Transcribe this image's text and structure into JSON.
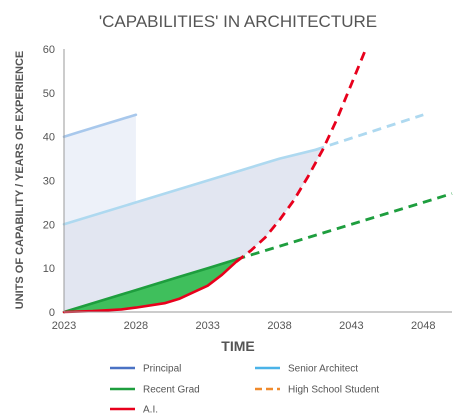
{
  "chart_data": {
    "type": "line",
    "title": "'CAPABILITIES' IN ARCHITECTURE",
    "xlabel": "TIME",
    "ylabel": "UNITS OF CAPABILITY / YEARS OF EXPERIENCE",
    "xlim": [
      2023,
      2050
    ],
    "ylim": [
      0,
      60
    ],
    "xticks": [
      2023,
      2028,
      2033,
      2038,
      2043,
      2048
    ],
    "yticks": [
      0,
      10,
      20,
      30,
      40,
      50,
      60
    ],
    "grid": false,
    "legend_position": "bottom",
    "series": [
      {
        "name": "Principal",
        "color": "#a8c8ec",
        "style": "solid",
        "points": [
          [
            2023,
            40
          ],
          [
            2024,
            41
          ],
          [
            2025,
            42
          ],
          [
            2026,
            43
          ],
          [
            2027,
            44
          ],
          [
            2028,
            45
          ]
        ]
      },
      {
        "name": "Senior Architect",
        "color": "#aed9f0",
        "style": "solid-then-dashed",
        "points": [
          [
            2023,
            20
          ],
          [
            2028,
            25
          ],
          [
            2033,
            30
          ],
          [
            2038,
            35
          ],
          [
            2040.5,
            37
          ]
        ],
        "projection": [
          [
            2040.5,
            37
          ],
          [
            2048,
            45
          ]
        ]
      },
      {
        "name": "Recent Grad",
        "color": "#1e9e3e",
        "style": "solid-then-dashed",
        "points": [
          [
            2023,
            0
          ],
          [
            2025,
            2
          ],
          [
            2028,
            5
          ],
          [
            2031,
            8
          ],
          [
            2033,
            10
          ],
          [
            2035,
            12
          ]
        ],
        "projection": [
          [
            2035,
            12
          ],
          [
            2050,
            27
          ]
        ]
      },
      {
        "name": "High School Student",
        "color": "#f4a460",
        "style": "dashed",
        "points": []
      },
      {
        "name": "A.I.",
        "color": "#e8001c",
        "style": "solid-then-dashed",
        "points": [
          [
            2023,
            0
          ],
          [
            2025,
            0.2
          ],
          [
            2027,
            0.6
          ],
          [
            2028,
            1
          ],
          [
            2030,
            2
          ],
          [
            2031,
            3
          ],
          [
            2032,
            4.5
          ],
          [
            2033,
            6
          ],
          [
            2034,
            8.5
          ],
          [
            2035,
            11.5
          ]
        ],
        "projection": [
          [
            2035,
            11.5
          ],
          [
            2036,
            14
          ],
          [
            2037,
            17
          ],
          [
            2038,
            21
          ],
          [
            2039,
            25.5
          ],
          [
            2040,
            31
          ],
          [
            2041,
            37
          ],
          [
            2042,
            44
          ],
          [
            2043,
            52
          ],
          [
            2044,
            60
          ]
        ]
      }
    ],
    "legend": [
      {
        "label": "Principal",
        "color": "#4a72c4",
        "style": "solid"
      },
      {
        "label": "Senior Architect",
        "color": "#4bb3e8",
        "style": "solid"
      },
      {
        "label": "Recent Grad",
        "color": "#1e9e3e",
        "style": "solid"
      },
      {
        "label": "High School Student",
        "color": "#f08a2c",
        "style": "dashed"
      },
      {
        "label": "A.I.",
        "color": "#e8001c",
        "style": "solid"
      }
    ],
    "fill_colors": {
      "principal_area": "#edf1f9",
      "senior_area": "#dde2ee",
      "grad_area": "#3fbf5c"
    }
  }
}
